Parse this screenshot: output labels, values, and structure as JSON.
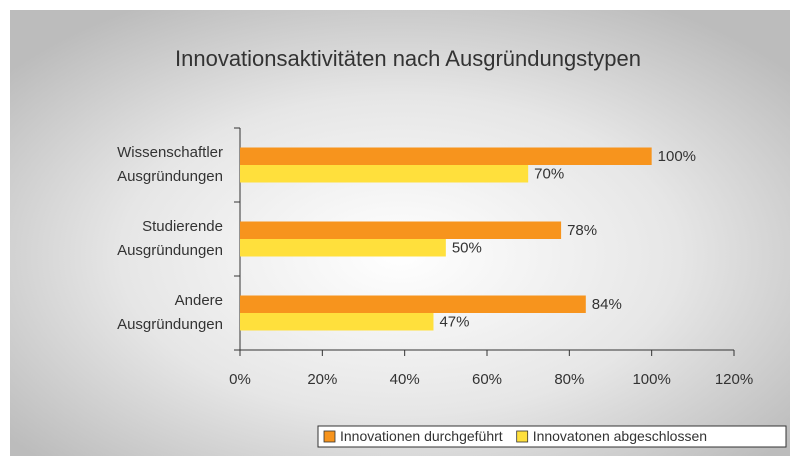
{
  "chart_data": {
    "type": "hbar",
    "title": "Innovationsaktivitäten nach Ausgründungstypen",
    "categories": [
      "Wissenschaftler\nAusgründungen",
      "Studierende\nAusgründungen",
      "Andere\nAusgründungen"
    ],
    "series": [
      {
        "name": "Innovationen durchgeführt",
        "color": "#f7941d",
        "values": [
          100,
          78,
          84
        ],
        "value_labels": [
          "100%",
          "78%",
          "84%"
        ]
      },
      {
        "name": "Innovatonen abgeschlossen",
        "color": "#ffe03c",
        "values": [
          70,
          50,
          47
        ],
        "value_labels": [
          "70%",
          "50%",
          "47%"
        ]
      }
    ],
    "xlim": [
      0,
      120
    ],
    "xticks": [
      {
        "value": 0,
        "label": "0%"
      },
      {
        "value": 20,
        "label": "20%"
      },
      {
        "value": 40,
        "label": "40%"
      },
      {
        "value": 60,
        "label": "60%"
      },
      {
        "value": 80,
        "label": "80%"
      },
      {
        "value": 100,
        "label": "100%"
      },
      {
        "value": 120,
        "label": "120%"
      }
    ],
    "grid": false,
    "legend": "bottom-right"
  }
}
